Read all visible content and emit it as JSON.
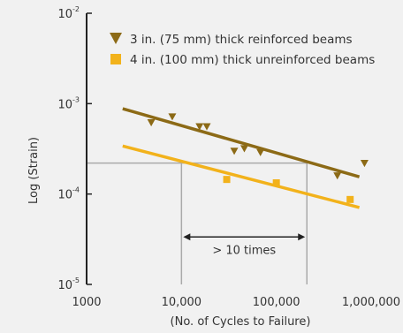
{
  "chart_data": {
    "type": "scatter",
    "title": "",
    "xlabel": "(No. of Cycles to Failure)",
    "ylabel": "Log (Strain)",
    "x_scale": "log",
    "y_scale": "log",
    "xlim": [
      1000,
      1000000
    ],
    "ylim": [
      1e-05,
      0.01
    ],
    "x_ticks": [
      {
        "value": 1000,
        "label": "1000"
      },
      {
        "value": 10000,
        "label": "10,000"
      },
      {
        "value": 100000,
        "label": "100,000"
      },
      {
        "value": 1000000,
        "label": "1,000,000"
      }
    ],
    "y_ticks": [
      {
        "value": 0.01,
        "base": "10",
        "exp": "-2"
      },
      {
        "value": 0.001,
        "base": "10",
        "exp": "-3"
      },
      {
        "value": 0.0001,
        "base": "10",
        "exp": "-4"
      },
      {
        "value": 1e-05,
        "base": "10",
        "exp": "-5"
      }
    ],
    "legend_position": "top",
    "grid": false,
    "series": [
      {
        "name": "3 in. (75 mm) thick reinforced beams",
        "color": "#8c6a16",
        "marker": "triangle-down",
        "points": [
          [
            4800,
            0.00062
          ],
          [
            8000,
            0.00072
          ],
          [
            15500,
            0.00056
          ],
          [
            18500,
            0.00056
          ],
          [
            36000,
            0.0003
          ],
          [
            46000,
            0.00032
          ],
          [
            68000,
            0.00029
          ],
          [
            440000,
            0.00016
          ],
          [
            850000,
            0.00022
          ]
        ],
        "fit_line": [
          [
            2400,
            0.00088
          ],
          [
            750000,
            0.000155
          ]
        ]
      },
      {
        "name": "4 in. (100 mm) thick unreinforced beams",
        "color": "#f2b21b",
        "marker": "square",
        "points": [
          [
            30000,
            0.000145
          ],
          [
            100000,
            0.000133
          ],
          [
            600000,
            8.7e-05
          ]
        ],
        "fit_line": [
          [
            2400,
            0.00034
          ],
          [
            750000,
            7.1e-05
          ]
        ]
      }
    ],
    "annotations": {
      "strain_level": 0.00022,
      "x_start": 10000,
      "x_end": 210000,
      "arrow_label": "> 10 times",
      "arrow_y": 3.35e-05,
      "line_color": "#aaaaaa"
    }
  }
}
